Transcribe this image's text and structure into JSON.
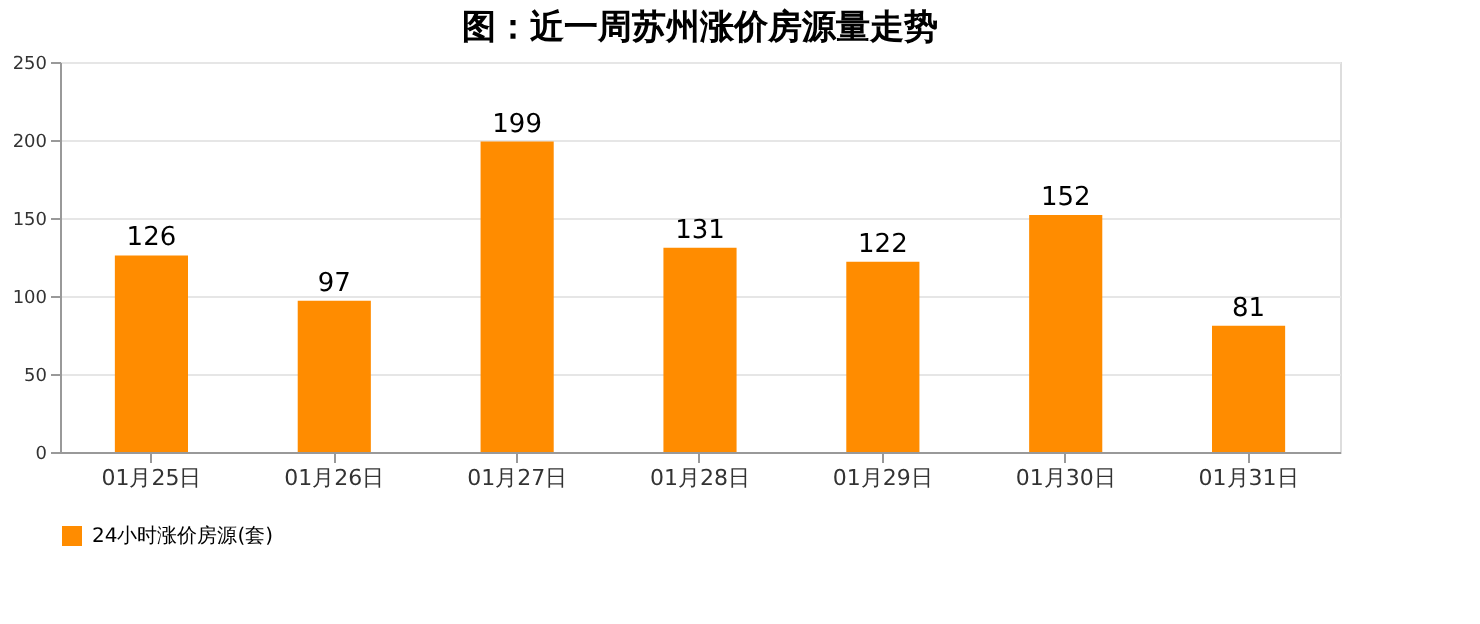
{
  "chart_data": {
    "type": "bar",
    "title": "图：近一周苏州涨价房源量走势",
    "categories": [
      "01月25日",
      "01月26日",
      "01月27日",
      "01月28日",
      "01月29日",
      "01月30日",
      "01月31日"
    ],
    "series": [
      {
        "name": "24小时涨价房源(套)",
        "color": "#ff8c00",
        "values": [
          126,
          97,
          199,
          131,
          122,
          152,
          81
        ]
      }
    ],
    "ylim": [
      0,
      250
    ],
    "yticks": [
      0,
      50,
      100,
      150,
      200,
      250
    ],
    "grid": "y",
    "legend": "bottom",
    "data_labels": true
  }
}
